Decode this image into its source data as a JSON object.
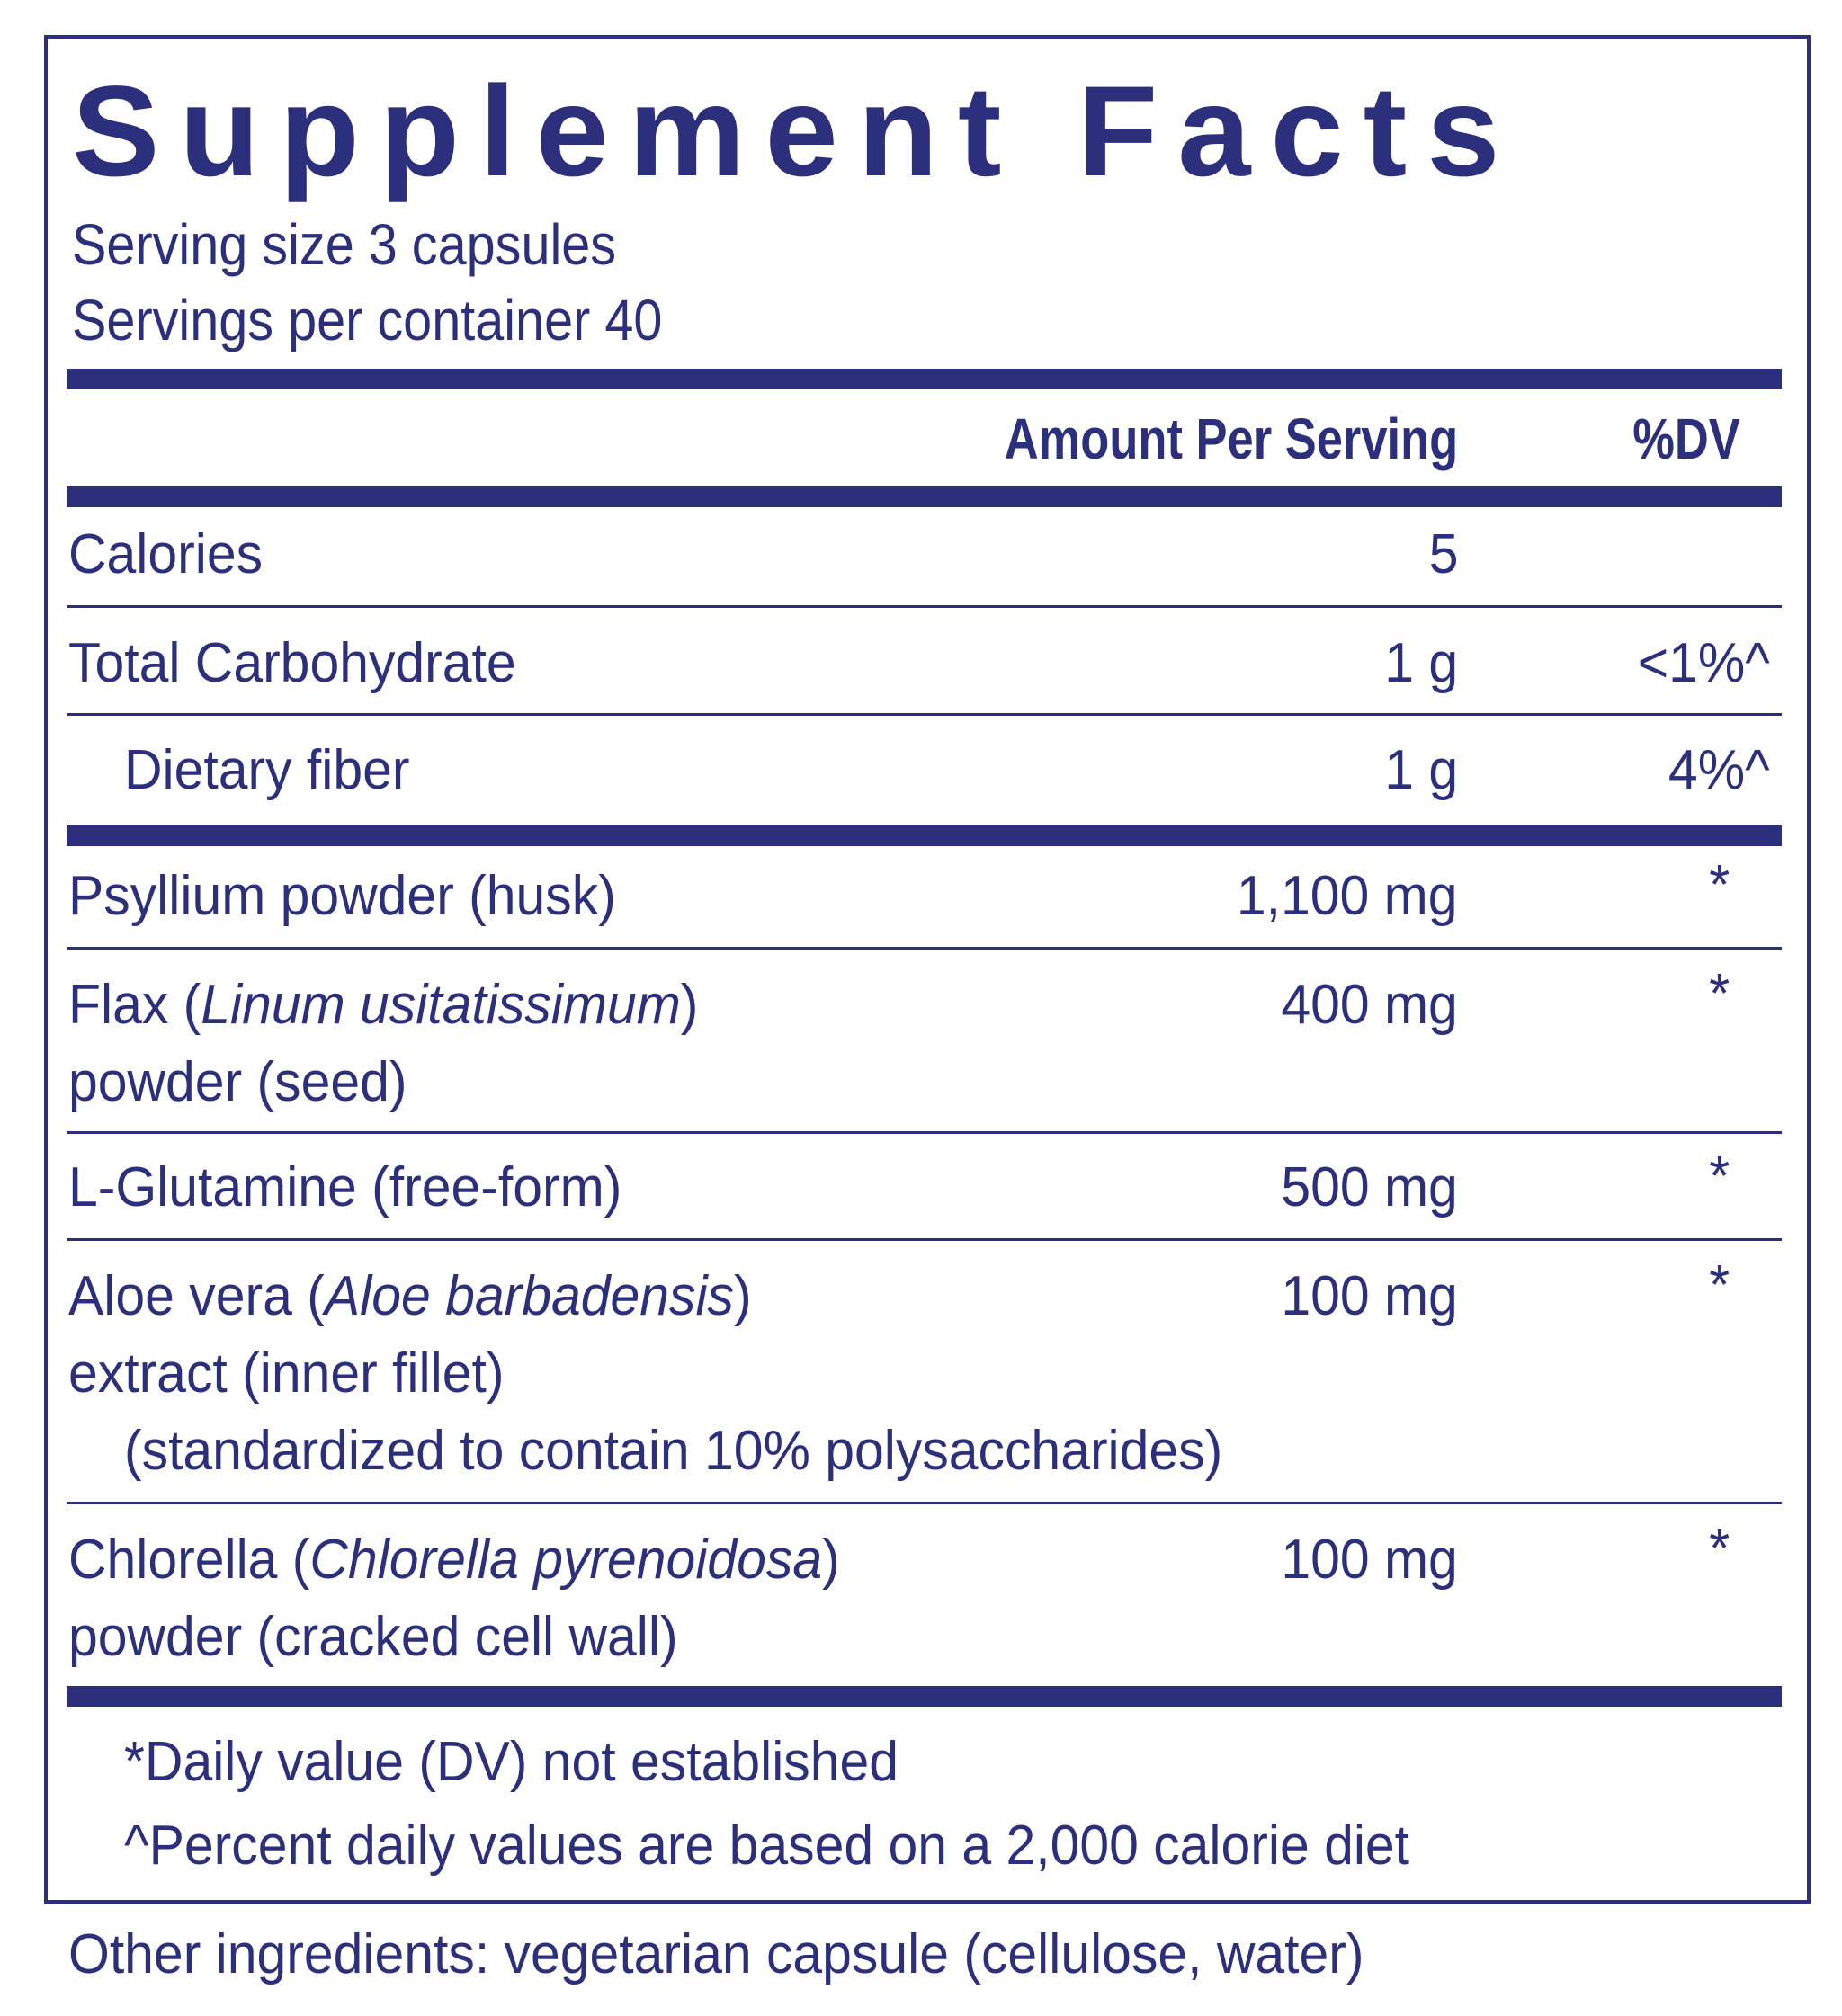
{
  "title": "Supplement Facts",
  "serving_size": "Serving size  3 capsules",
  "servings_per_container": "Servings per container  40",
  "header": {
    "amount": "Amount Per Serving",
    "dv": "%DV"
  },
  "rows": [
    {
      "name": "Calories",
      "amount": "5",
      "dv": ""
    },
    {
      "name": "Total Carbohydrate",
      "amount": "1 g",
      "dv": "<1%^"
    },
    {
      "name": "Dietary fiber",
      "amount": "1 g",
      "dv": "4%^"
    },
    {
      "name": "Psyllium powder (husk)",
      "amount": "1,100 mg",
      "dv": "*"
    },
    {
      "name_pre": "Flax (",
      "name_italic": "Linum usitatissimum",
      "name_post": ")",
      "name_line2": "powder (seed)",
      "amount": "400 mg",
      "dv": "*"
    },
    {
      "name": "L-Glutamine (free-form)",
      "amount": "500 mg",
      "dv": "*"
    },
    {
      "name_pre": "Aloe vera (",
      "name_italic": "Aloe barbadensis",
      "name_post": ")",
      "name_line2": "extract (inner fillet)",
      "name_line3": "(standardized to contain 10% polysaccharides)",
      "amount": "100 mg",
      "dv": "*"
    },
    {
      "name_pre": "Chlorella (",
      "name_italic": "Chlorella pyrenoidosa",
      "name_post": ")",
      "name_line2": "powder (cracked cell wall)",
      "amount": "100 mg",
      "dv": "*"
    }
  ],
  "footnotes": [
    "*Daily value (DV) not established",
    "^Percent daily values are based on a 2,000 calorie diet"
  ],
  "other_ingredients": "Other ingredients: vegetarian capsule (cellulose, water)",
  "colors": {
    "ink": "#2b2f7c",
    "background": "#ffffff"
  }
}
